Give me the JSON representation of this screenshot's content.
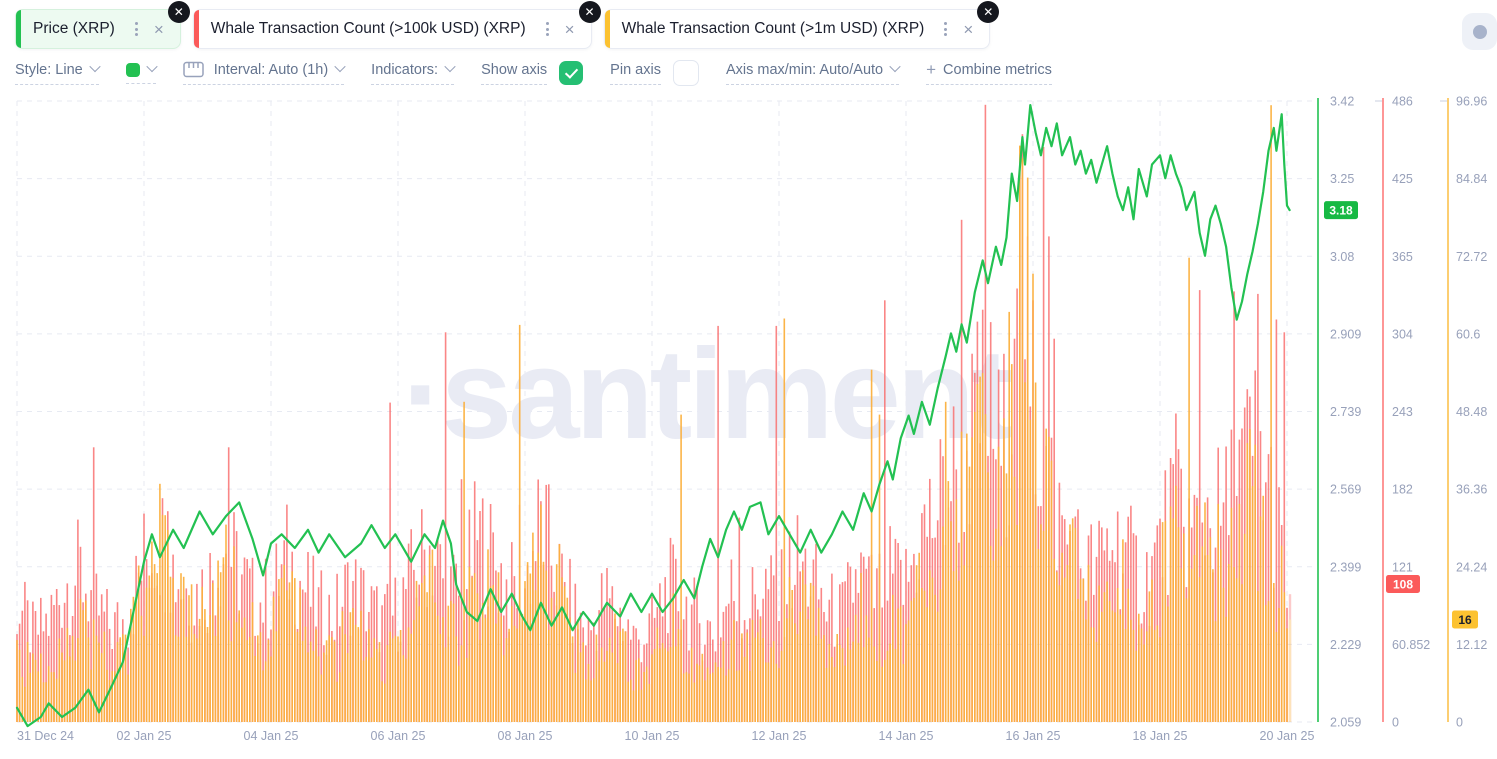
{
  "header": {
    "tabs": [
      {
        "label": "Price (XRP)",
        "color": "#23c152",
        "active": true
      },
      {
        "label": "Whale Transaction Count (>100k USD) (XRP)",
        "color": "#fb5a5a",
        "active": false
      },
      {
        "label": "Whale Transaction Count (>1m USD) (XRP)",
        "color": "#fcc231",
        "active": false
      }
    ],
    "tab_close_glyph": "×",
    "badge_close_glyph": "✕"
  },
  "toolbar": {
    "style_label": "Style: Line",
    "swatch_color": "#23c152",
    "interval_label": "Interval: Auto (1h)",
    "indicators_label": "Indicators:",
    "show_axis_label": "Show axis",
    "show_axis_checked": true,
    "pin_axis_label": "Pin axis",
    "pin_axis_checked": false,
    "axis_maxmin_label": "Axis max/min: Auto/Auto",
    "plus_glyph": "+",
    "combine_label": "Combine metrics"
  },
  "watermark": "·santiment",
  "chart_data": {
    "type": "mixed",
    "x_axis": {
      "start": "31 Dec 24 00:00",
      "hours_span": 481,
      "date_ticks": [
        "31 Dec 24",
        "02 Jan 25",
        "04 Jan 25",
        "06 Jan 25",
        "08 Jan 25",
        "10 Jan 25",
        "12 Jan 25",
        "14 Jan 25",
        "16 Jan 25",
        "18 Jan 25",
        "20 Jan 25"
      ]
    },
    "series": [
      {
        "name": "Price (XRP)",
        "type": "line",
        "color": "#23c152",
        "axis": {
          "min": 2.059,
          "max": 3.419,
          "ticks": [
            "3.42",
            "3.25",
            "3.08",
            "2.909",
            "2.739",
            "2.569",
            "2.399",
            "2.229",
            "2.059"
          ]
        },
        "last_value": "3.18",
        "badge_color": "#17b944",
        "points": [
          [
            0,
            2.09
          ],
          [
            4,
            2.05
          ],
          [
            9,
            2.07
          ],
          [
            12,
            2.1
          ],
          [
            17,
            2.07
          ],
          [
            22,
            2.09
          ],
          [
            27,
            2.13
          ],
          [
            31,
            2.08
          ],
          [
            36,
            2.14
          ],
          [
            40,
            2.19
          ],
          [
            44,
            2.3
          ],
          [
            48,
            2.41
          ],
          [
            51,
            2.47
          ],
          [
            54,
            2.42
          ],
          [
            59,
            2.48
          ],
          [
            63,
            2.44
          ],
          [
            69,
            2.52
          ],
          [
            74,
            2.47
          ],
          [
            79,
            2.51
          ],
          [
            84,
            2.54
          ],
          [
            89,
            2.46
          ],
          [
            93,
            2.38
          ],
          [
            96,
            2.45
          ],
          [
            100,
            2.47
          ],
          [
            105,
            2.44
          ],
          [
            110,
            2.48
          ],
          [
            114,
            2.43
          ],
          [
            118,
            2.47
          ],
          [
            124,
            2.42
          ],
          [
            130,
            2.45
          ],
          [
            134,
            2.49
          ],
          [
            139,
            2.44
          ],
          [
            143,
            2.47
          ],
          [
            149,
            2.41
          ],
          [
            154,
            2.47
          ],
          [
            158,
            2.44
          ],
          [
            161,
            2.5
          ],
          [
            164,
            2.45
          ],
          [
            166,
            2.36
          ],
          [
            170,
            2.3
          ],
          [
            174,
            2.28
          ],
          [
            179,
            2.35
          ],
          [
            183,
            2.3
          ],
          [
            187,
            2.34
          ],
          [
            191,
            2.29
          ],
          [
            194,
            2.26
          ],
          [
            198,
            2.32
          ],
          [
            202,
            2.27
          ],
          [
            206,
            2.31
          ],
          [
            210,
            2.26
          ],
          [
            214,
            2.3
          ],
          [
            218,
            2.27
          ],
          [
            223,
            2.32
          ],
          [
            228,
            2.29
          ],
          [
            232,
            2.34
          ],
          [
            236,
            2.3
          ],
          [
            240,
            2.34
          ],
          [
            244,
            2.3
          ],
          [
            248,
            2.33
          ],
          [
            252,
            2.37
          ],
          [
            256,
            2.33
          ],
          [
            259,
            2.4
          ],
          [
            262,
            2.46
          ],
          [
            265,
            2.42
          ],
          [
            268,
            2.48
          ],
          [
            271,
            2.52
          ],
          [
            274,
            2.48
          ],
          [
            277,
            2.53
          ],
          [
            281,
            2.54
          ],
          [
            284,
            2.47
          ],
          [
            288,
            2.51
          ],
          [
            292,
            2.47
          ],
          [
            296,
            2.43
          ],
          [
            300,
            2.48
          ],
          [
            304,
            2.43
          ],
          [
            308,
            2.47
          ],
          [
            312,
            2.52
          ],
          [
            316,
            2.48
          ],
          [
            320,
            2.56
          ],
          [
            323,
            2.52
          ],
          [
            326,
            2.58
          ],
          [
            329,
            2.63
          ],
          [
            331,
            2.59
          ],
          [
            334,
            2.68
          ],
          [
            337,
            2.73
          ],
          [
            339,
            2.69
          ],
          [
            342,
            2.76
          ],
          [
            345,
            2.71
          ],
          [
            348,
            2.79
          ],
          [
            351,
            2.86
          ],
          [
            353,
            2.91
          ],
          [
            355,
            2.87
          ],
          [
            357,
            2.93
          ],
          [
            359,
            2.89
          ],
          [
            362,
            3.0
          ],
          [
            365,
            3.07
          ],
          [
            367,
            3.02
          ],
          [
            370,
            3.1
          ],
          [
            372,
            3.06
          ],
          [
            374,
            3.12
          ],
          [
            376,
            3.26
          ],
          [
            378,
            3.2
          ],
          [
            380,
            3.34
          ],
          [
            381,
            3.28
          ],
          [
            383,
            3.41
          ],
          [
            385,
            3.35
          ],
          [
            387,
            3.3
          ],
          [
            389,
            3.36
          ],
          [
            391,
            3.32
          ],
          [
            393,
            3.37
          ],
          [
            395,
            3.3
          ],
          [
            398,
            3.34
          ],
          [
            400,
            3.28
          ],
          [
            402,
            3.31
          ],
          [
            404,
            3.26
          ],
          [
            406,
            3.29
          ],
          [
            408,
            3.24
          ],
          [
            410,
            3.28
          ],
          [
            412,
            3.32
          ],
          [
            414,
            3.26
          ],
          [
            416,
            3.21
          ],
          [
            418,
            3.18
          ],
          [
            420,
            3.23
          ],
          [
            422,
            3.16
          ],
          [
            424,
            3.27
          ],
          [
            427,
            3.21
          ],
          [
            429,
            3.28
          ],
          [
            432,
            3.3
          ],
          [
            434,
            3.25
          ],
          [
            436,
            3.3
          ],
          [
            438,
            3.26
          ],
          [
            440,
            3.23
          ],
          [
            442,
            3.18
          ],
          [
            445,
            3.22
          ],
          [
            447,
            3.13
          ],
          [
            449,
            3.08
          ],
          [
            451,
            3.16
          ],
          [
            453,
            3.19
          ],
          [
            455,
            3.15
          ],
          [
            457,
            3.1
          ],
          [
            459,
            3.01
          ],
          [
            461,
            2.94
          ],
          [
            463,
            2.98
          ],
          [
            465,
            3.04
          ],
          [
            467,
            3.09
          ],
          [
            469,
            3.15
          ],
          [
            471,
            3.22
          ],
          [
            473,
            3.31
          ],
          [
            475,
            3.36
          ],
          [
            476,
            3.31
          ],
          [
            478,
            3.39
          ],
          [
            479,
            3.28
          ],
          [
            480,
            3.19
          ],
          [
            481,
            3.18
          ]
        ]
      },
      {
        "name": "Whale Transaction Count (>100k USD) (XRP)",
        "type": "bar",
        "color": "#f96b6b",
        "axis": {
          "min": 0,
          "max": 486,
          "ticks": [
            "486",
            "425",
            "365",
            "304",
            "243",
            "182",
            "121",
            "60.852",
            "0"
          ]
        },
        "last_value": "108",
        "badge_color": "#fb5a5a",
        "base_6h": [
          95,
          70,
          80,
          110,
          120,
          90,
          75,
          85,
          130,
          150,
          120,
          100,
          110,
          140,
          120,
          95,
          100,
          130,
          110,
          90,
          85,
          110,
          95,
          80,
          90,
          120,
          140,
          110,
          100,
          150,
          130,
          105,
          110,
          160,
          120,
          90,
          70,
          100,
          85,
          65,
          75,
          110,
          95,
          80,
          70,
          105,
          90,
          110,
          95,
          130,
          115,
          90,
          85,
          120,
          100,
          115,
          110,
          150,
          170,
          200,
          220,
          260,
          210,
          280,
          240,
          190,
          150,
          130,
          120,
          150,
          130,
          110,
          140,
          180,
          150,
          170,
          160,
          200,
          220,
          180,
          108
        ],
        "spikes": [
          [
            29,
            215
          ],
          [
            57,
            165
          ],
          [
            80,
            215
          ],
          [
            141,
            250
          ],
          [
            162,
            305
          ],
          [
            168,
            190
          ],
          [
            190,
            170
          ],
          [
            265,
            310
          ],
          [
            273,
            160
          ],
          [
            287,
            310
          ],
          [
            328,
            330
          ],
          [
            357,
            393
          ],
          [
            366,
            483
          ],
          [
            377,
            300
          ],
          [
            379,
            430
          ],
          [
            380,
            460
          ],
          [
            382,
            380
          ],
          [
            384,
            330
          ],
          [
            388,
            450
          ],
          [
            390,
            380
          ],
          [
            392,
            300
          ],
          [
            447,
            338
          ],
          [
            460,
            337
          ],
          [
            469,
            335
          ],
          [
            476,
            315
          ],
          [
            479,
            305
          ]
        ]
      },
      {
        "name": "Whale Transaction Count (>1m USD) (XRP)",
        "type": "bar",
        "color": "#fbb03e",
        "axis": {
          "min": 0,
          "max": 96.96,
          "ticks": [
            "96.96",
            "84.84",
            "72.72",
            "60.6",
            "48.48",
            "36.36",
            "24.24",
            "12.12",
            "0"
          ]
        },
        "last_value": "16",
        "badge_color": "#fcc231",
        "base_6h": [
          12,
          8,
          10,
          14,
          16,
          12,
          10,
          12,
          22,
          28,
          20,
          16,
          18,
          24,
          20,
          14,
          14,
          20,
          16,
          12,
          10,
          16,
          13,
          10,
          12,
          18,
          22,
          15,
          14,
          24,
          20,
          16,
          18,
          28,
          22,
          14,
          9,
          14,
          12,
          8,
          10,
          16,
          13,
          10,
          9,
          15,
          12,
          16,
          13,
          20,
          17,
          12,
          11,
          18,
          14,
          17,
          15,
          22,
          26,
          32,
          38,
          48,
          40,
          55,
          45,
          35,
          26,
          22,
          18,
          24,
          20,
          16,
          24,
          32,
          26,
          28,
          26,
          34,
          38,
          30,
          16
        ],
        "spikes": [
          [
            57,
            30
          ],
          [
            169,
            50
          ],
          [
            190,
            62
          ],
          [
            251,
            48
          ],
          [
            290,
            63
          ],
          [
            323,
            55
          ],
          [
            326,
            48
          ],
          [
            351,
            50
          ],
          [
            379,
            90
          ],
          [
            380,
            88
          ],
          [
            382,
            85
          ],
          [
            384,
            70
          ],
          [
            443,
            72.5
          ],
          [
            474,
            96.3
          ]
        ]
      }
    ],
    "legend_position": "none",
    "grid": true
  }
}
